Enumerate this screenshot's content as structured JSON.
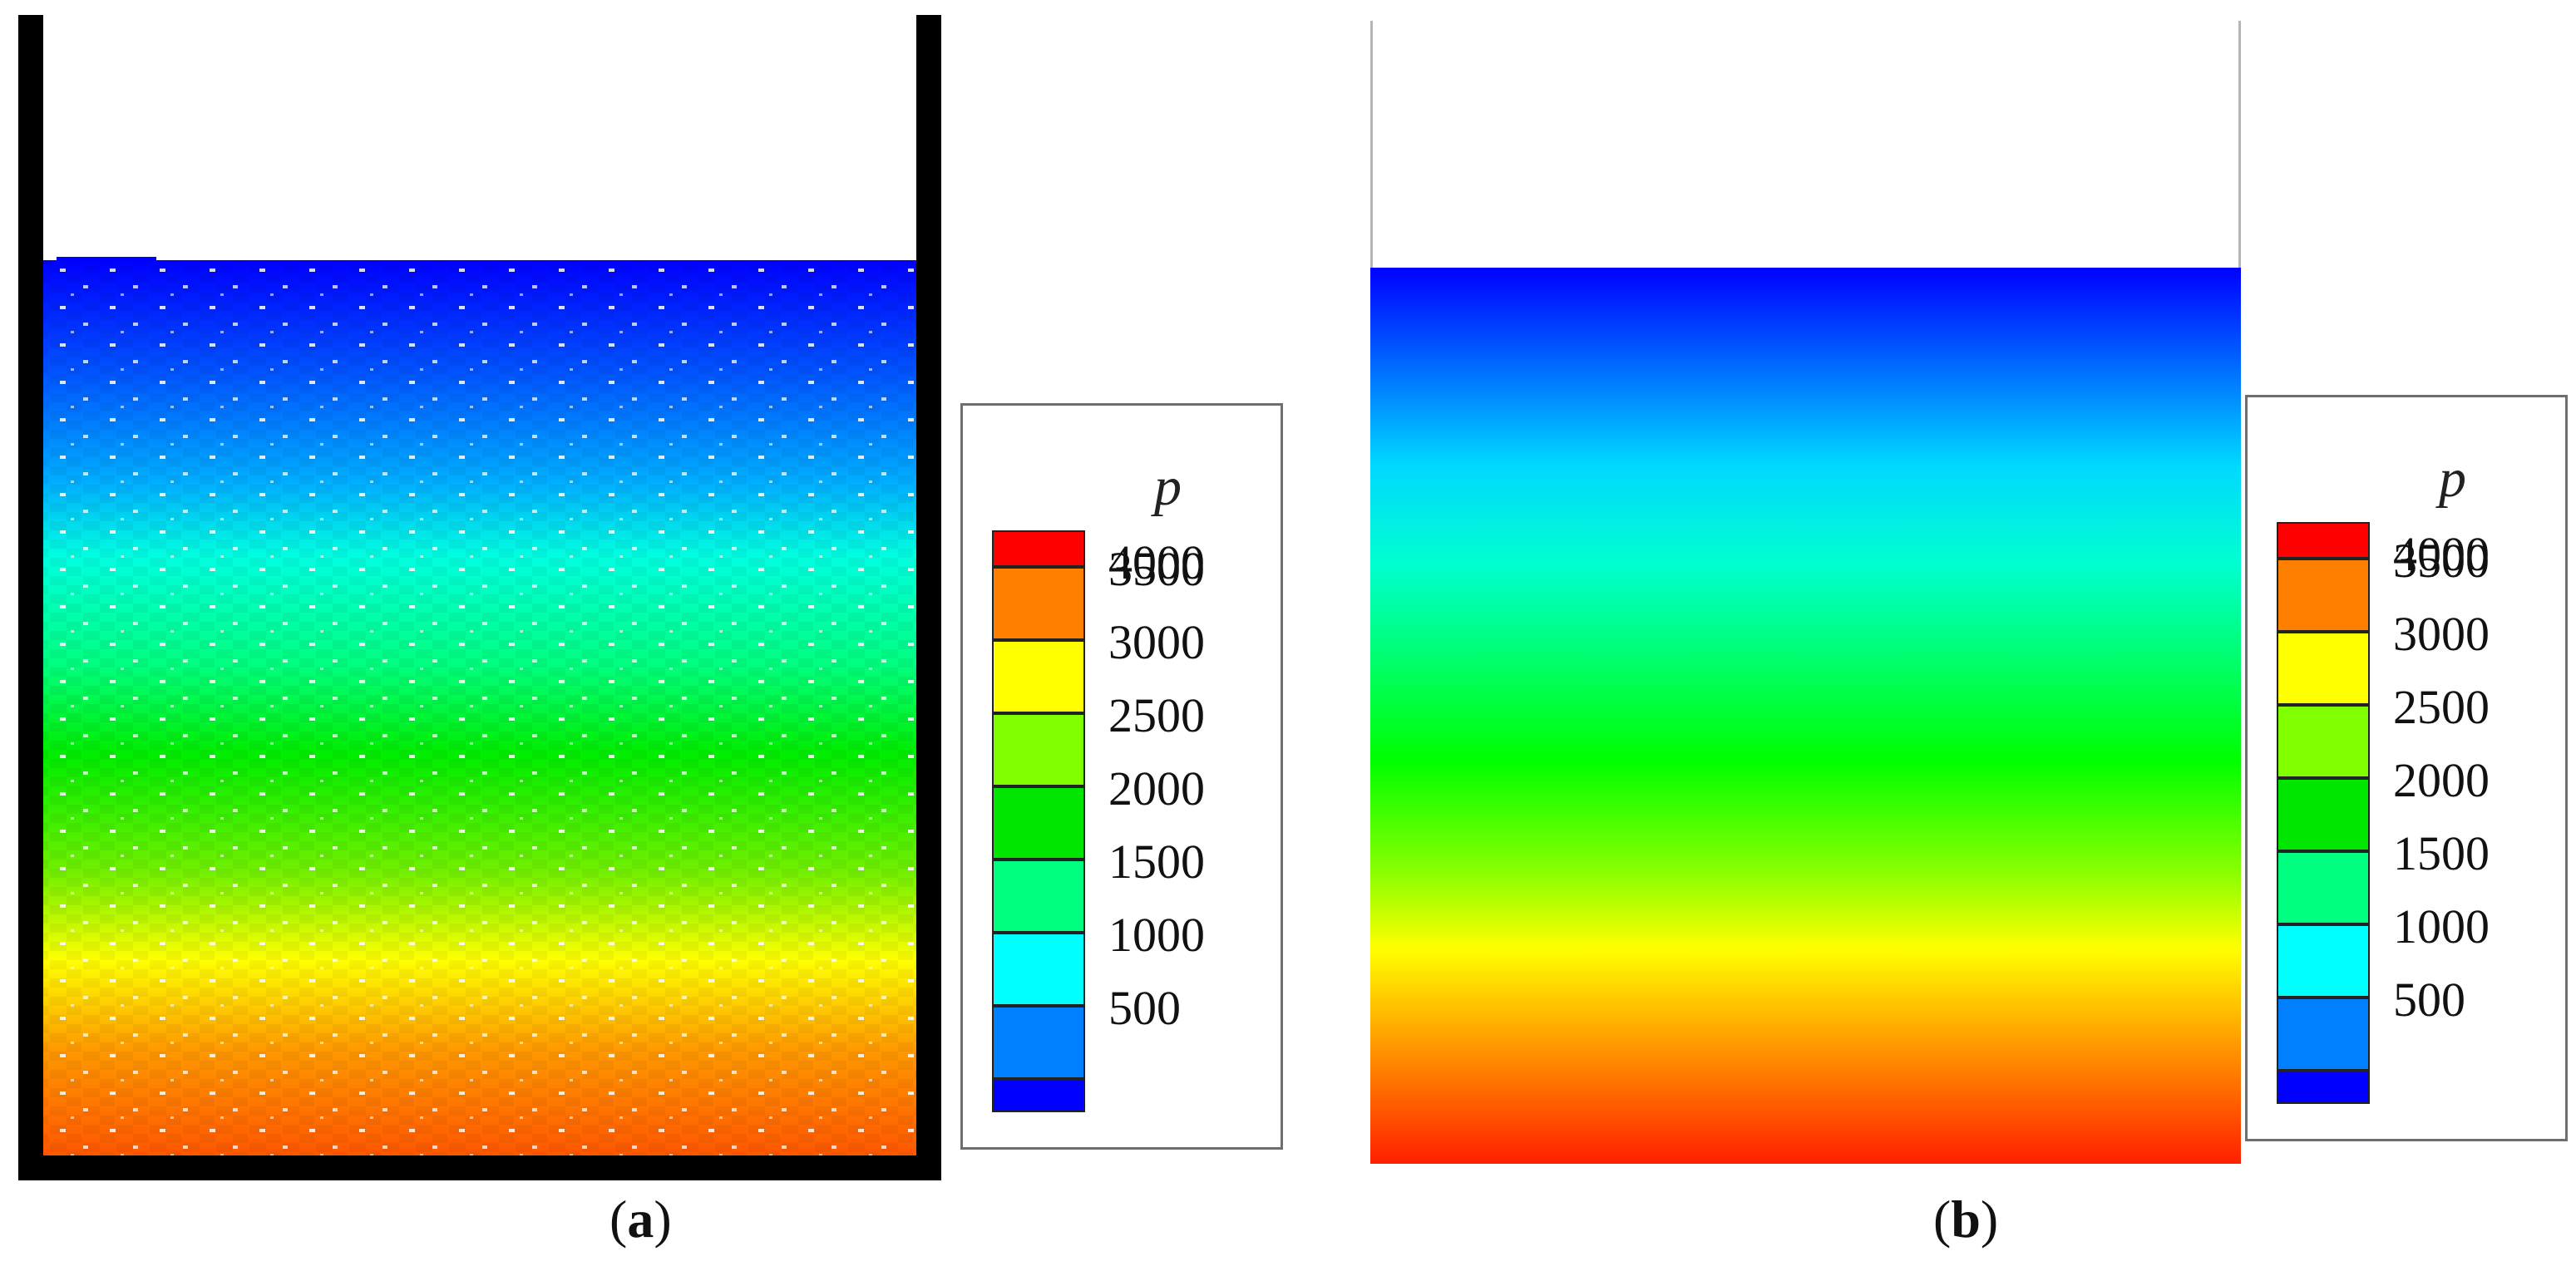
{
  "panel_a": {
    "caption_open": "(",
    "caption_letter": "a",
    "caption_close": ")",
    "wall_color": "#000000",
    "fill_fraction_of_height": 0.77
  },
  "panel_b": {
    "caption_open": "(",
    "caption_letter": "b",
    "caption_close": ")",
    "wall_color": "#b5b5b5",
    "fill_fraction_of_height": 0.78
  },
  "legend": {
    "title": "p",
    "levels": [
      {
        "label": "4000",
        "color": "#ff0000"
      },
      {
        "label": "3500",
        "color": "#ff7f00"
      },
      {
        "label": "3000",
        "color": "#ffff00"
      },
      {
        "label": "2500",
        "color": "#80ff00"
      },
      {
        "label": "2000",
        "color": "#00e600"
      },
      {
        "label": "1500",
        "color": "#00ff80"
      },
      {
        "label": "1000",
        "color": "#00ffff"
      },
      {
        "label": "500",
        "color": "#0080ff"
      }
    ],
    "bottom_color": "#0000ff"
  },
  "gradient_colors": [
    "#0000ff",
    "#0078ff",
    "#00ffff",
    "#00ff80",
    "#00ff00",
    "#80ff00",
    "#ffff00",
    "#ff9900",
    "#ff2000"
  ]
}
